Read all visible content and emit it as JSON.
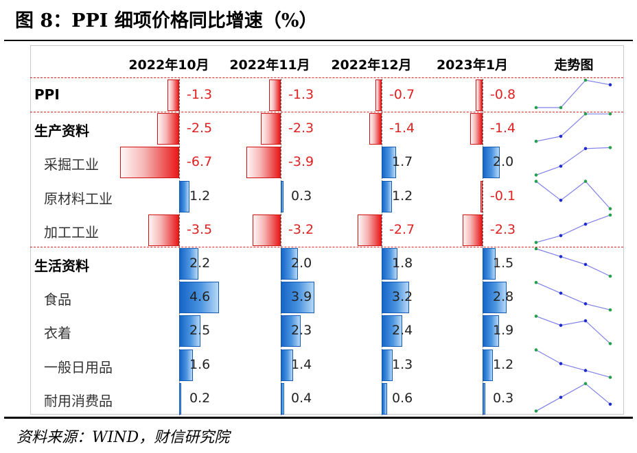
{
  "title": "图 8：PPI 细项价格同比增速（%）",
  "source": "资料来源：WIND，财信研究院",
  "colors": {
    "positive": "#2f80d6",
    "negative": "#e81818",
    "separator": "#d42020",
    "sparkline": "#7f7fe8",
    "point_low": "#22a04b",
    "point_high": "#1e2bd0"
  },
  "chart_data": {
    "type": "table",
    "columns": [
      "2022年10月",
      "2022年11月",
      "2022年12月",
      "2023年1月"
    ],
    "trend_header": "走势图",
    "value_range": [
      -6.7,
      4.6
    ],
    "rows": [
      {
        "label": "PPI",
        "bold": true,
        "values": [
          -1.3,
          -1.3,
          -0.7,
          -0.8
        ]
      },
      {
        "label": "生产资料",
        "bold": true,
        "values": [
          -2.5,
          -2.3,
          -1.4,
          -1.4
        ]
      },
      {
        "label": "采掘工业",
        "bold": false,
        "values": [
          -6.7,
          -3.9,
          1.7,
          2.0
        ]
      },
      {
        "label": "原材料工业",
        "bold": false,
        "values": [
          1.2,
          0.3,
          1.2,
          -0.1
        ]
      },
      {
        "label": "加工工业",
        "bold": false,
        "values": [
          -3.5,
          -3.2,
          -2.7,
          -2.3
        ]
      },
      {
        "label": "生活资料",
        "bold": true,
        "values": [
          2.2,
          2.0,
          1.8,
          1.5
        ]
      },
      {
        "label": "食品",
        "bold": false,
        "values": [
          4.6,
          3.9,
          3.2,
          2.8
        ]
      },
      {
        "label": "衣着",
        "bold": false,
        "values": [
          2.5,
          2.3,
          2.4,
          1.9
        ]
      },
      {
        "label": "一般日用品",
        "bold": false,
        "values": [
          1.6,
          1.4,
          1.3,
          1.2
        ]
      },
      {
        "label": "耐用消费品",
        "bold": false,
        "values": [
          0.2,
          0.4,
          0.6,
          0.3
        ]
      }
    ],
    "separators_after_rows": [
      0,
      4
    ]
  }
}
